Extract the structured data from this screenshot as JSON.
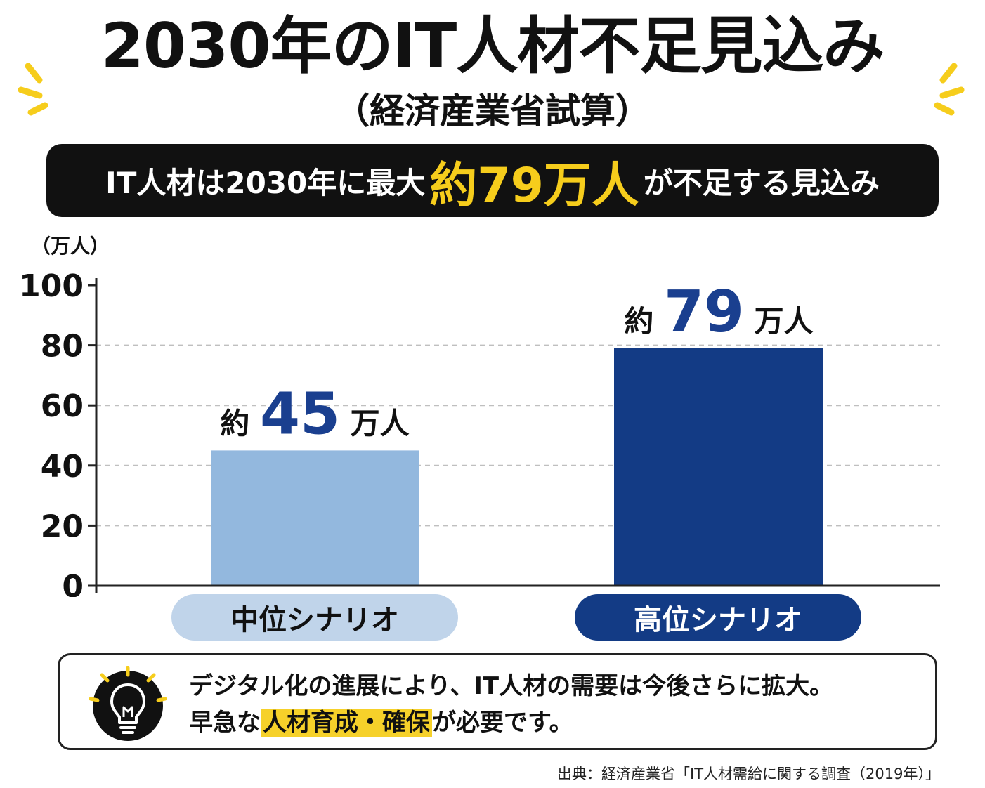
{
  "header": {
    "title": "2030年のIT人材不足見込み",
    "subtitle": "（経済産業省試算）"
  },
  "banner": {
    "prefix": "IT人材は2030年に最大",
    "highlight": "約79万人",
    "suffix": "が不足する見込み"
  },
  "chart_data": {
    "type": "bar",
    "unit_label": "（万人）",
    "categories": [
      "中位シナリオ",
      "高位シナリオ"
    ],
    "values": [
      45,
      79
    ],
    "value_labels": [
      {
        "prefix": "約",
        "number": "45",
        "suffix": "万人"
      },
      {
        "prefix": "約",
        "number": "79",
        "suffix": "万人"
      }
    ],
    "ylim": [
      0,
      100
    ],
    "yticks": [
      0,
      20,
      40,
      60,
      80,
      100
    ],
    "grid": true,
    "colors": [
      "#93b8de",
      "#133b85"
    ],
    "label_color": "#1a3f8f"
  },
  "note": {
    "line1": "デジタル化の進展により、IT人材の需要は今後さらに拡大。",
    "line2_prefix": "早急な",
    "line2_highlight": "人材育成・確保",
    "line2_suffix": "が必要です。",
    "icon": "lightbulb-icon"
  },
  "source": "出典：経済産業省「IT人材需給に関する調査（2019年）」",
  "colors": {
    "accent_yellow": "#f6cd1c",
    "dark": "#111111",
    "mid_pill": "#c0d4ea",
    "high_pill": "#133b85"
  }
}
